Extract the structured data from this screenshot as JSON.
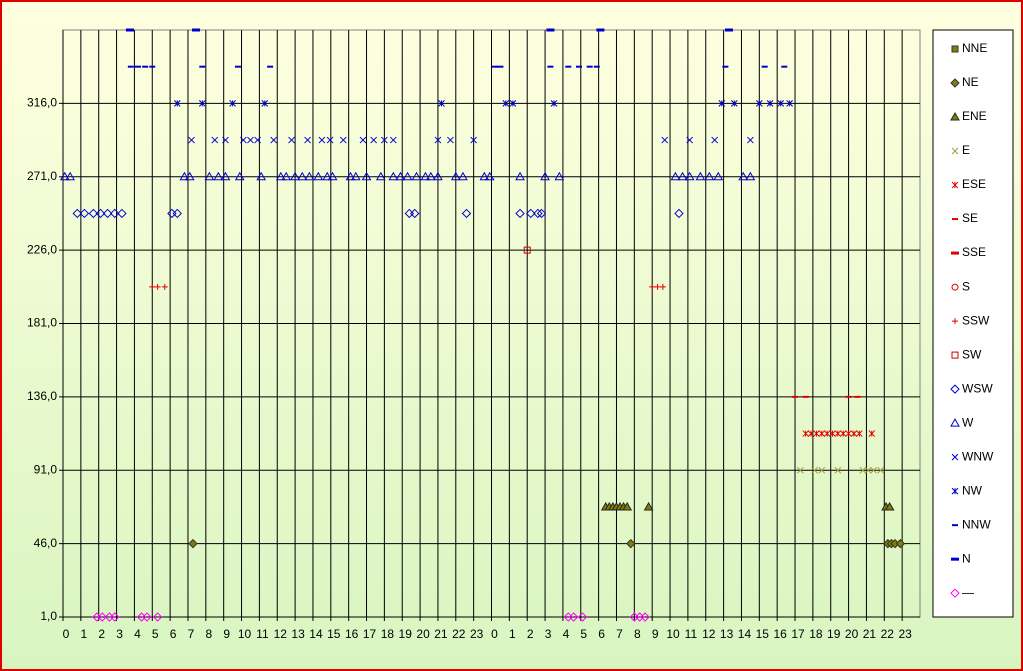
{
  "chart_data": {
    "type": "scatter",
    "categories": [
      "0",
      "1",
      "2",
      "3",
      "4",
      "5",
      "6",
      "7",
      "8",
      "9",
      "10",
      "11",
      "12",
      "13",
      "14",
      "15",
      "16",
      "17",
      "18",
      "19",
      "20",
      "21",
      "22",
      "23",
      "0",
      "1",
      "2",
      "3",
      "4",
      "5",
      "6",
      "7",
      "8",
      "9",
      "10",
      "11",
      "12",
      "13",
      "14",
      "15",
      "16",
      "17",
      "18",
      "19",
      "20",
      "21",
      "22",
      "23"
    ],
    "xlim": [
      0,
      48
    ],
    "ylim": [
      1,
      361
    ],
    "yticks": [
      {
        "value": 1,
        "label": "1,0"
      },
      {
        "value": 46,
        "label": "46,0"
      },
      {
        "value": 91,
        "label": "91,0"
      },
      {
        "value": 136,
        "label": "136,0"
      },
      {
        "value": 181,
        "label": "181,0"
      },
      {
        "value": 226,
        "label": "226,0"
      },
      {
        "value": 271,
        "label": "271,0"
      },
      {
        "value": 316,
        "label": "316,0"
      }
    ],
    "grid": true,
    "legend": "right",
    "series": [
      {
        "name": "NNE",
        "marker": "square",
        "color": "#808000",
        "x": [],
        "values": []
      },
      {
        "name": "NE",
        "marker": "diamond",
        "color": "#808000",
        "x": [
          7.28,
          31.8,
          46.2,
          46.4,
          46.6,
          46.9
        ],
        "values": [
          46,
          46,
          46,
          46,
          46,
          46
        ]
      },
      {
        "name": "ENE",
        "marker": "triangle",
        "color": "#808000",
        "x": [
          30.4,
          30.6,
          30.8,
          31.0,
          31.2,
          31.4,
          31.6,
          32.8,
          46.1,
          46.3
        ],
        "values": [
          68.5,
          68.5,
          68.5,
          68.5,
          68.5,
          68.5,
          68.5,
          68.5,
          68.5,
          68.5
        ]
      },
      {
        "name": "E",
        "marker": "x",
        "color": "#a0a040",
        "x": [
          41.3,
          42.1,
          42.5,
          43.4,
          44.8,
          45.1,
          45.4,
          45.8
        ],
        "values": [
          91,
          91,
          91,
          91,
          91,
          91,
          91,
          91
        ]
      },
      {
        "name": "ESE",
        "marker": "asterisk",
        "color": "#e00000",
        "x": [
          41.6,
          41.9,
          42.2,
          42.5,
          42.8,
          43.1,
          43.4,
          43.7,
          44.0,
          44.3,
          44.6,
          45.3
        ],
        "values": [
          113.5,
          113.5,
          113.5,
          113.5,
          113.5,
          113.5,
          113.5,
          113.5,
          113.5,
          113.5,
          113.5,
          113.5
        ]
      },
      {
        "name": "SE",
        "marker": "dash",
        "color": "#e00000",
        "x": [
          41.0,
          41.6,
          44.0,
          44.5
        ],
        "values": [
          136,
          136,
          136,
          136
        ]
      },
      {
        "name": "SSE",
        "marker": "thickdash",
        "color": "#e00000",
        "x": [],
        "values": []
      },
      {
        "name": "S",
        "marker": "circle",
        "color": "#e00000",
        "x": [],
        "values": []
      },
      {
        "name": "SSW",
        "marker": "plus",
        "color": "#e00000",
        "x": [
          5.0,
          5.3,
          5.7,
          33.0,
          33.3,
          33.6
        ],
        "values": [
          203.5,
          203.5,
          203.5,
          203.5,
          203.5,
          203.5
        ]
      },
      {
        "name": "SW",
        "marker": "square",
        "color": "#cc0000",
        "x": [
          26.0
        ],
        "values": [
          226
        ]
      },
      {
        "name": "WSW",
        "marker": "diamond",
        "color": "#0000cc",
        "x": [
          0.8,
          1.2,
          1.7,
          2.1,
          2.5,
          2.9,
          3.3,
          6.1,
          6.4,
          19.4,
          19.7,
          22.6,
          25.6,
          26.2,
          26.6,
          26.8,
          34.5
        ],
        "values": [
          248.5,
          248.5,
          248.5,
          248.5,
          248.5,
          248.5,
          248.5,
          248.5,
          248.5,
          248.5,
          248.5,
          248.5,
          248.5,
          248.5,
          248.5,
          248.5,
          248.5
        ]
      },
      {
        "name": "W",
        "marker": "triangle",
        "color": "#0000cc",
        "x": [
          0.1,
          0.4,
          6.8,
          7.1,
          8.2,
          8.7,
          9.1,
          9.9,
          11.1,
          12.2,
          12.5,
          13.0,
          13.4,
          13.8,
          14.3,
          14.8,
          15.1,
          16.1,
          16.4,
          17.0,
          17.8,
          18.5,
          18.9,
          19.3,
          19.8,
          20.3,
          20.6,
          21.0,
          22.0,
          22.4,
          23.6,
          23.9,
          25.6,
          27.0,
          27.8,
          34.3,
          34.7,
          35.1,
          35.7,
          36.2,
          36.7,
          38.1,
          38.5
        ],
        "values": [
          271,
          271,
          271,
          271,
          271,
          271,
          271,
          271,
          271,
          271,
          271,
          271,
          271,
          271,
          271,
          271,
          271,
          271,
          271,
          271,
          271,
          271,
          271,
          271,
          271,
          271,
          271,
          271,
          271,
          271,
          271,
          271,
          271,
          271,
          271,
          271,
          271,
          271,
          271,
          271,
          271,
          271,
          271
        ]
      },
      {
        "name": "WNW",
        "marker": "x",
        "color": "#0000cc",
        "x": [
          7.2,
          8.5,
          9.1,
          10.1,
          10.5,
          10.9,
          11.8,
          12.8,
          13.7,
          14.5,
          14.96,
          15.7,
          16.8,
          17.4,
          18.0,
          18.5,
          21.0,
          21.7,
          23.0,
          33.7,
          35.1,
          36.5,
          38.5
        ],
        "values": [
          293.5,
          293.5,
          293.5,
          293.5,
          293.5,
          293.5,
          293.5,
          293.5,
          293.5,
          293.5,
          293.5,
          293.5,
          293.5,
          293.5,
          293.5,
          293.5,
          293.5,
          293.5,
          293.5,
          293.5,
          293.5,
          293.5,
          293.5
        ]
      },
      {
        "name": "NW",
        "marker": "asterisk",
        "color": "#0000cc",
        "x": [
          6.4,
          7.8,
          9.5,
          11.3,
          21.2,
          24.8,
          25.2,
          27.5,
          36.9,
          37.6,
          39.0,
          39.6,
          40.2,
          40.7
        ],
        "values": [
          316,
          316,
          316,
          316,
          316,
          316,
          316,
          316,
          316,
          316,
          316,
          316,
          316,
          316
        ]
      },
      {
        "name": "NNW",
        "marker": "dash",
        "color": "#0000cc",
        "x": [
          3.8,
          4.2,
          4.6,
          5.0,
          7.8,
          9.8,
          11.6,
          24.2,
          24.5,
          27.3,
          28.3,
          28.9,
          29.5,
          29.9,
          37.1,
          39.3,
          40.4
        ],
        "values": [
          338.5,
          338.5,
          338.5,
          338.5,
          338.5,
          338.5,
          338.5,
          338.5,
          338.5,
          338.5,
          338.5,
          338.5,
          338.5,
          338.5,
          338.5,
          338.5,
          338.5
        ]
      },
      {
        "name": "N",
        "marker": "thickdash",
        "color": "#0000cc",
        "x": [
          3.75,
          7.45,
          27.3,
          30.1,
          37.3
        ],
        "values": [
          361,
          361,
          361,
          361,
          361
        ]
      },
      {
        "name": "—",
        "marker": "diamond",
        "color": "#ff00ff",
        "x": [
          1.9,
          2.2,
          2.6,
          2.9,
          4.4,
          4.7,
          5.3,
          28.3,
          28.6,
          29.1,
          32.0,
          32.3,
          32.6
        ],
        "values": [
          1,
          1,
          1,
          1,
          1,
          1,
          1,
          1,
          1,
          1,
          1,
          1,
          1
        ]
      }
    ]
  }
}
